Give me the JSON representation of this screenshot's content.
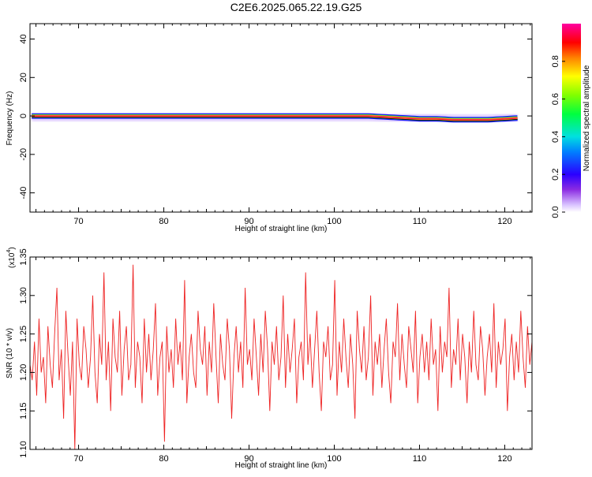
{
  "title": "C2E6.2025.065.22.19.G25",
  "colors": {
    "snr_line": "#ee2222",
    "band_core": "#ff1a4a",
    "band_mid": "#22cc44",
    "band_edge": "#1a1aff",
    "band_halo": "#c8a8ff"
  },
  "colorbar": {
    "label": "Normalized spectral amplitude",
    "ticks": [
      "0.0",
      "0.2",
      "0.4",
      "0.6",
      "0.8"
    ],
    "tick_values": [
      0.0,
      0.2,
      0.4,
      0.6,
      0.8
    ],
    "range": [
      0,
      1
    ],
    "colormap": "rainbow (magenta→red→yellow→green→cyan→blue→violet→white)"
  },
  "chart_data": [
    {
      "type": "heatmap",
      "name": "spectrogram",
      "xlabel": "Height of straight line (km)",
      "ylabel": "Frequency (Hz)",
      "xlim": [
        64.3,
        123.2
      ],
      "ylim": [
        -50,
        48
      ],
      "xticks": [
        70,
        80,
        90,
        100,
        110,
        120
      ],
      "xtick_labels": [
        "70",
        "80",
        "90",
        "100",
        "110",
        "120"
      ],
      "yticks": [
        -40,
        -20,
        0,
        20,
        40
      ],
      "ytick_labels": [
        "-40",
        "-20",
        "0",
        "20",
        "40"
      ],
      "signal_center_hz": {
        "x": [
          64.5,
          70,
          80,
          90,
          95,
          100,
          104,
          106,
          108,
          110,
          112,
          114,
          116,
          118,
          120,
          121.8
        ],
        "y": [
          0,
          0,
          0,
          0,
          0,
          0,
          0,
          -0.5,
          -1,
          -1.5,
          -1.5,
          -2,
          -2,
          -2,
          -1.5,
          -1
        ]
      },
      "signal_extent_km": [
        64.5,
        121.8
      ]
    },
    {
      "type": "line",
      "name": "snr",
      "xlabel": "Height of straight line (km)",
      "ylabel": "SNR (10 * v/v)",
      "exponent_label": "(x10",
      "exponent_power": "4",
      "exponent_close": ")",
      "xlim": [
        64.3,
        123.2
      ],
      "ylim": [
        1.1,
        1.35
      ],
      "xticks": [
        70,
        80,
        90,
        100,
        110,
        120
      ],
      "xtick_labels": [
        "70",
        "80",
        "90",
        "100",
        "110",
        "120"
      ],
      "yticks": [
        1.1,
        1.15,
        1.2,
        1.25,
        1.3,
        1.35
      ],
      "ytick_labels": [
        "1.10",
        "1.15",
        "1.20",
        "1.25",
        "1.30",
        "1.35"
      ],
      "series": [
        {
          "color": "#ee2222",
          "x_start": 64.3,
          "x_end": 123.2,
          "y": [
            1.21,
            1.19,
            1.24,
            1.17,
            1.27,
            1.2,
            1.22,
            1.16,
            1.26,
            1.21,
            1.18,
            1.25,
            1.31,
            1.19,
            1.23,
            1.14,
            1.28,
            1.22,
            1.17,
            1.24,
            1.1,
            1.27,
            1.21,
            1.19,
            1.26,
            1.23,
            1.18,
            1.22,
            1.3,
            1.2,
            1.16,
            1.25,
            1.21,
            1.33,
            1.19,
            1.24,
            1.15,
            1.27,
            1.22,
            1.2,
            1.28,
            1.17,
            1.23,
            1.26,
            1.19,
            1.21,
            1.34,
            1.18,
            1.24,
            1.22,
            1.16,
            1.27,
            1.2,
            1.25,
            1.19,
            1.23,
            1.29,
            1.17,
            1.22,
            1.24,
            1.11,
            1.26,
            1.2,
            1.23,
            1.18,
            1.27,
            1.21,
            1.24,
            1.19,
            1.32,
            1.16,
            1.22,
            1.25,
            1.2,
            1.18,
            1.28,
            1.23,
            1.21,
            1.26,
            1.17,
            1.24,
            1.2,
            1.29,
            1.22,
            1.16,
            1.25,
            1.21,
            1.19,
            1.27,
            1.23,
            1.14,
            1.22,
            1.26,
            1.2,
            1.24,
            1.18,
            1.31,
            1.21,
            1.23,
            1.19,
            1.27,
            1.22,
            1.17,
            1.25,
            1.2,
            1.28,
            1.23,
            1.15,
            1.24,
            1.21,
            1.26,
            1.19,
            1.22,
            1.3,
            1.18,
            1.25,
            1.2,
            1.23,
            1.27,
            1.16,
            1.22,
            1.24,
            1.19,
            1.33,
            1.21,
            1.25,
            1.18,
            1.23,
            1.28,
            1.2,
            1.15,
            1.24,
            1.22,
            1.26,
            1.19,
            1.21,
            1.32,
            1.17,
            1.24,
            1.2,
            1.27,
            1.22,
            1.18,
            1.25,
            1.21,
            1.14,
            1.28,
            1.23,
            1.2,
            1.26,
            1.19,
            1.22,
            1.3,
            1.17,
            1.24,
            1.21,
            1.25,
            1.18,
            1.23,
            1.27,
            1.2,
            1.16,
            1.24,
            1.22,
            1.29,
            1.19,
            1.25,
            1.21,
            1.18,
            1.26,
            1.23,
            1.2,
            1.28,
            1.16,
            1.22,
            1.25,
            1.2,
            1.24,
            1.19,
            1.27,
            1.21,
            1.23,
            1.15,
            1.26,
            1.2,
            1.24,
            1.22,
            1.31,
            1.18,
            1.23,
            1.21,
            1.27,
            1.19,
            1.25,
            1.22,
            1.16,
            1.24,
            1.2,
            1.28,
            1.21,
            1.19,
            1.26,
            1.23,
            1.17,
            1.22,
            1.25,
            1.2,
            1.29,
            1.18,
            1.24,
            1.21,
            1.23,
            1.27,
            1.15,
            1.22,
            1.25,
            1.19,
            1.24,
            1.2,
            1.28,
            1.22,
            1.18,
            1.26,
            1.21,
            1.24
          ]
        }
      ]
    }
  ]
}
